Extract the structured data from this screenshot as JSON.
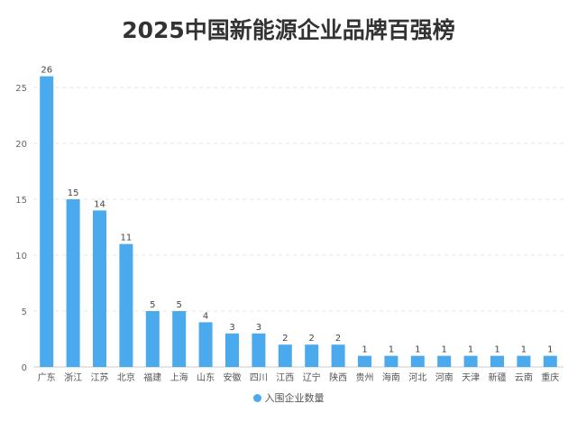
{
  "chart_data": {
    "type": "bar",
    "title": "2025中国新能源企业品牌百强榜",
    "xlabel": "",
    "ylabel": "",
    "categories": [
      "广东",
      "浙江",
      "江苏",
      "北京",
      "福建",
      "上海",
      "山东",
      "安徽",
      "四川",
      "江西",
      "辽宁",
      "陕西",
      "贵州",
      "海南",
      "河北",
      "河南",
      "天津",
      "新疆",
      "云南",
      "重庆"
    ],
    "series": [
      {
        "name": "入围企业数量",
        "values": [
          26,
          15,
          14,
          11,
          5,
          5,
          4,
          3,
          3,
          2,
          2,
          2,
          1,
          1,
          1,
          1,
          1,
          1,
          1,
          1
        ]
      }
    ],
    "ylim": [
      0,
      25
    ],
    "yticks": [
      0,
      5,
      10,
      15,
      20,
      25
    ],
    "grid": true,
    "legend": "bottom-center",
    "color": "#4ba9ee"
  }
}
